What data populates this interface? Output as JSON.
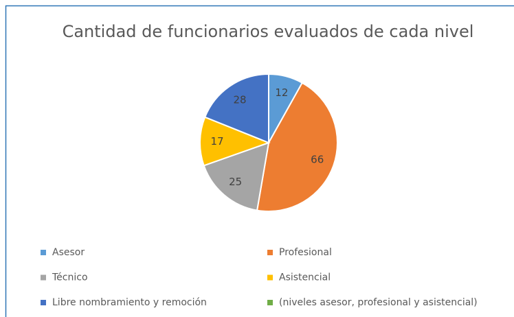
{
  "chart_data": {
    "type": "pie",
    "title": "Cantidad de funcionarios evaluados de cada nivel",
    "categories": [
      "Asesor",
      "Profesional",
      "Técnico",
      "Asistencial",
      "Libre nombramiento y remoción",
      "(niveles asesor, profesional y asistencial)"
    ],
    "values": [
      12,
      66,
      25,
      17,
      28,
      null
    ],
    "colors": [
      "#5b9bd5",
      "#ed7d31",
      "#a5a5a5",
      "#ffc000",
      "#4472c4",
      "#70ad47"
    ],
    "legend": "bottom"
  }
}
